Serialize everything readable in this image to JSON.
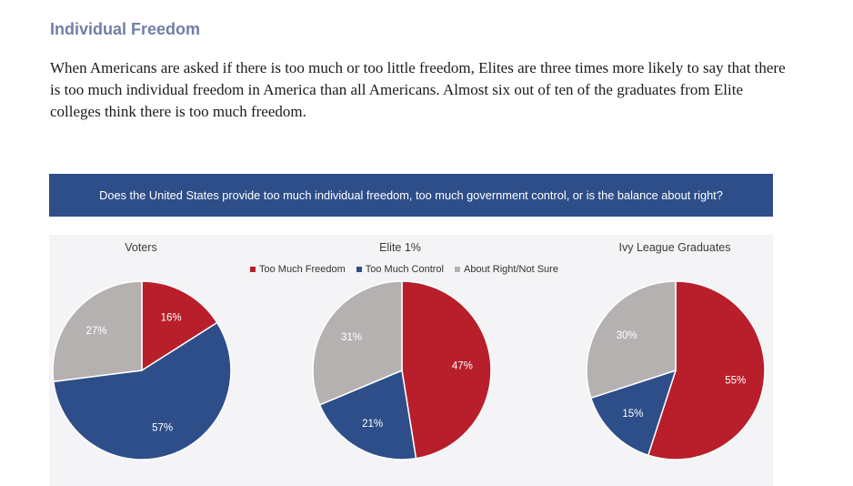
{
  "section_title": "Individual Freedom",
  "intro_text": "When Americans are asked if there is too much or too little freedom, Elites are three times more likely to say that there is too much individual freedom in America than all Americans. Almost six out of ten of the graduates from Elite colleges think there is too much freedom.",
  "banner_text": "Does the United States provide too much individual freedom, too much government control, or is the balance about right?",
  "colors": {
    "too_much_freedom": "#b81f2b",
    "too_much_control": "#2d4e89",
    "about_right": "#b6b1b1",
    "label_light": "#ffffff",
    "label_dark": "#6d6d6d"
  },
  "legend": [
    {
      "label": "Too Much Freedom",
      "color": "#b81f2b"
    },
    {
      "label": "Too Much Control",
      "color": "#2d4e89"
    },
    {
      "label": "About Right/Not Sure",
      "color": "#b6b1b1"
    }
  ],
  "chart_data": [
    {
      "type": "pie",
      "title": "Voters",
      "categories": [
        "Too Much Freedom",
        "Too Much Control",
        "About Right/Not Sure"
      ],
      "values": [
        16,
        57,
        27
      ],
      "labels": [
        "16%",
        "57%",
        "27%"
      ]
    },
    {
      "type": "pie",
      "title": "Elite 1%",
      "categories": [
        "Too Much Freedom",
        "Too Much Control",
        "About Right/Not Sure"
      ],
      "values": [
        47,
        21,
        31
      ],
      "labels": [
        "47%",
        "21%",
        "31%"
      ]
    },
    {
      "type": "pie",
      "title": "Ivy League Graduates",
      "categories": [
        "Too Much Freedom",
        "Too Much Control",
        "About Right/Not Sure"
      ],
      "values": [
        55,
        15,
        30
      ],
      "labels": [
        "55%",
        "15%",
        "30%"
      ]
    }
  ]
}
